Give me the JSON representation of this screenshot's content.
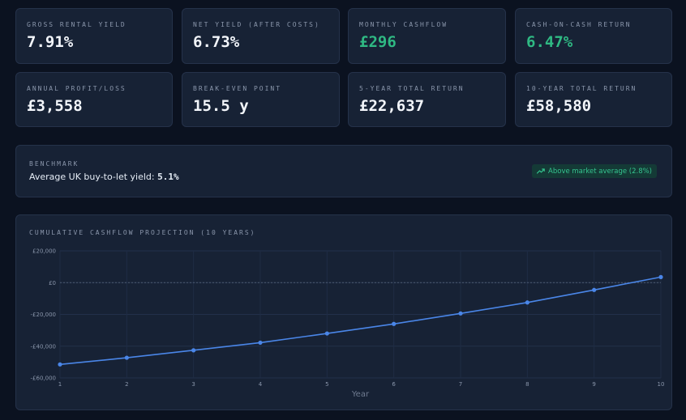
{
  "stats": [
    {
      "label": "GROSS RENTAL YIELD",
      "value": "7.91%",
      "tone": "neutral"
    },
    {
      "label": "NET YIELD (AFTER COSTS)",
      "value": "6.73%",
      "tone": "neutral"
    },
    {
      "label": "MONTHLY CASHFLOW",
      "value": "£296",
      "tone": "positive"
    },
    {
      "label": "CASH-ON-CASH RETURN",
      "value": "6.47%",
      "tone": "positive"
    },
    {
      "label": "ANNUAL PROFIT/LOSS",
      "value": "£3,558",
      "tone": "neutral"
    },
    {
      "label": "BREAK-EVEN POINT",
      "value": "15.5 y",
      "tone": "neutral"
    },
    {
      "label": "5-YEAR TOTAL RETURN",
      "value": "£22,637",
      "tone": "neutral"
    },
    {
      "label": "10-YEAR TOTAL RETURN",
      "value": "£58,580",
      "tone": "neutral"
    }
  ],
  "benchmark": {
    "label": "BENCHMARK",
    "text_prefix": "Average UK buy-to-let yield: ",
    "value": "5.1%",
    "badge_text": "Above market average (2.8%)",
    "badge_icon": "trending-up-icon"
  },
  "colors": {
    "background": "#0b1220",
    "card": "#172235",
    "positive": "#2fb983",
    "line": "#4a86e8"
  },
  "chart_title": "CUMULATIVE CASHFLOW PROJECTION (10 YEARS)",
  "chart_data": {
    "type": "line",
    "title": "CUMULATIVE CASHFLOW PROJECTION (10 YEARS)",
    "xlabel": "Year",
    "ylabel": "",
    "x": [
      1,
      2,
      3,
      4,
      5,
      6,
      7,
      8,
      9,
      10
    ],
    "series": [
      {
        "values": [
          -51500,
          -47300,
          -42600,
          -37800,
          -32000,
          -26000,
          -19400,
          -12500,
          -4600,
          3500
        ]
      }
    ],
    "ylim": [
      -60000,
      20000
    ],
    "yticks": [
      20000,
      0,
      -20000,
      -40000,
      -60000
    ],
    "ytick_labels": [
      "£20,000",
      "£0",
      "-£20,000",
      "-£40,000",
      "-£60,000"
    ],
    "xtick_labels": [
      "1",
      "2",
      "3",
      "4",
      "5",
      "6",
      "7",
      "8",
      "9",
      "10"
    ],
    "zero_line": "dashed",
    "grid": true,
    "legend": "none"
  }
}
